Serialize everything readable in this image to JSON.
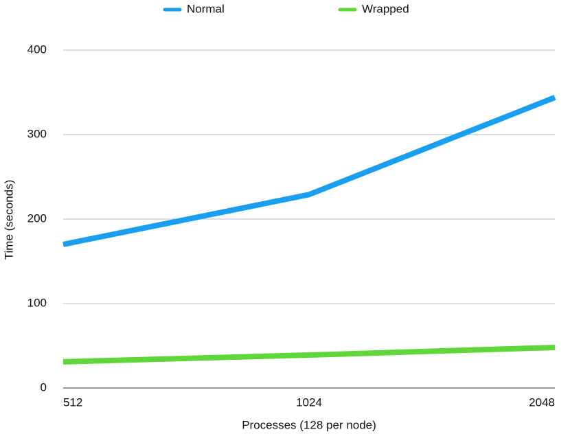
{
  "chart_data": {
    "type": "line",
    "categories": [
      "512",
      "1024",
      "2048"
    ],
    "series": [
      {
        "name": "Normal",
        "color": "#1a9ff0",
        "values": [
          170,
          229,
          344
        ]
      },
      {
        "name": "Wrapped",
        "color": "#5fd63a",
        "values": [
          31,
          39,
          48
        ]
      }
    ],
    "xlabel": "Processes (128 per node)",
    "ylabel": "Time (seconds)",
    "ylim": [
      0,
      400
    ],
    "yticks": [
      0,
      100,
      200,
      300,
      400
    ],
    "grid": true,
    "legend": "top"
  }
}
